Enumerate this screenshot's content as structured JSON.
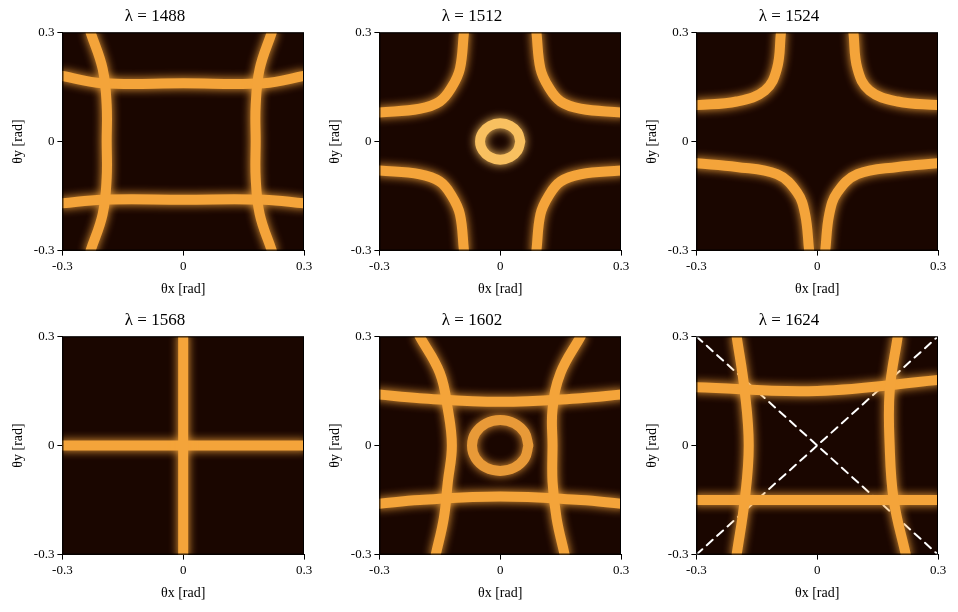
{
  "chart_data": [
    {
      "type": "line",
      "title": "λ = 1488",
      "x_label": "θx [rad]",
      "y_label": "θy [rad]",
      "xlim": [
        -0.3,
        0.3
      ],
      "ylim": [
        -0.3,
        0.3
      ],
      "xticks": [
        -0.3,
        0,
        0.3
      ],
      "yticks": [
        -0.3,
        0,
        0.3
      ],
      "grid": false,
      "series": [
        {
          "color": "#f4a43a",
          "line_style": "solid",
          "marker": "none",
          "x": [
            -0.23,
            -0.2,
            -0.19,
            -0.19,
            -0.19,
            -0.2,
            -0.23
          ],
          "y": [
            0.3,
            0.2,
            0.1,
            0,
            -0.1,
            -0.2,
            -0.3
          ]
        },
        {
          "color": "#f4a43a",
          "line_style": "solid",
          "marker": "none",
          "x": [
            0.22,
            0.19,
            0.18,
            0.18,
            0.18,
            0.19,
            0.22
          ],
          "y": [
            0.3,
            0.2,
            0.1,
            0,
            -0.1,
            -0.2,
            -0.3
          ]
        },
        {
          "color": "#f4a43a",
          "line_style": "solid",
          "marker": "none",
          "x": [
            -0.3,
            -0.2,
            0,
            0.2,
            0.3
          ],
          "y": [
            0.18,
            0.16,
            0.16,
            0.16,
            0.18
          ]
        },
        {
          "color": "#f4a43a",
          "line_style": "solid",
          "marker": "none",
          "x": [
            -0.3,
            -0.2,
            0,
            0.2,
            0.3
          ],
          "y": [
            -0.17,
            -0.16,
            -0.16,
            -0.16,
            -0.17
          ]
        }
      ]
    },
    {
      "type": "line",
      "title": "λ = 1512",
      "x_label": "θx [rad]",
      "y_label": "θy [rad]",
      "xlim": [
        -0.3,
        0.3
      ],
      "ylim": [
        -0.3,
        0.3
      ],
      "xticks": [
        -0.3,
        0,
        0.3
      ],
      "yticks": [
        -0.3,
        0,
        0.3
      ],
      "grid": false,
      "series": [
        {
          "color": "#f4a43a",
          "line_style": "solid",
          "marker": "none",
          "x": [
            -0.3,
            -0.2,
            -0.15,
            -0.12,
            -0.1,
            -0.09
          ],
          "y": [
            0.08,
            0.09,
            0.11,
            0.15,
            0.2,
            0.3
          ]
        },
        {
          "color": "#f4a43a",
          "line_style": "solid",
          "marker": "none",
          "x": [
            0.3,
            0.2,
            0.15,
            0.12,
            0.1,
            0.09
          ],
          "y": [
            0.08,
            0.09,
            0.11,
            0.15,
            0.2,
            0.3
          ]
        },
        {
          "color": "#f4a43a",
          "line_style": "solid",
          "marker": "none",
          "x": [
            -0.3,
            -0.2,
            -0.15,
            -0.12,
            -0.1,
            -0.09
          ],
          "y": [
            -0.08,
            -0.09,
            -0.11,
            -0.15,
            -0.2,
            -0.3
          ]
        },
        {
          "color": "#f4a43a",
          "line_style": "solid",
          "marker": "none",
          "x": [
            0.3,
            0.2,
            0.15,
            0.12,
            0.1,
            0.09
          ],
          "y": [
            -0.08,
            -0.09,
            -0.11,
            -0.15,
            -0.2,
            -0.3
          ]
        },
        {
          "color": "#f8c060",
          "line_style": "solid",
          "marker": "none",
          "x": [
            0.05,
            0.043,
            0.025,
            0,
            -0.025,
            -0.043,
            -0.05,
            -0.043,
            -0.025,
            0,
            0.025,
            0.043,
            0.05
          ],
          "y": [
            0,
            0.025,
            0.043,
            0.05,
            0.043,
            0.025,
            0,
            -0.025,
            -0.043,
            -0.05,
            -0.043,
            -0.025,
            0
          ]
        }
      ]
    },
    {
      "type": "line",
      "title": "λ = 1524",
      "x_label": "θx [rad]",
      "y_label": "θy [rad]",
      "xlim": [
        -0.3,
        0.3
      ],
      "ylim": [
        -0.3,
        0.3
      ],
      "xticks": [
        -0.3,
        0,
        0.3
      ],
      "yticks": [
        -0.3,
        0,
        0.3
      ],
      "grid": false,
      "series": [
        {
          "color": "#f4a43a",
          "line_style": "solid",
          "marker": "none",
          "x": [
            -0.3,
            -0.2,
            -0.13,
            -0.1,
            -0.09
          ],
          "y": [
            0.1,
            0.11,
            0.14,
            0.2,
            0.3
          ]
        },
        {
          "color": "#f4a43a",
          "line_style": "solid",
          "marker": "none",
          "x": [
            0.3,
            0.2,
            0.13,
            0.1,
            0.09
          ],
          "y": [
            0.1,
            0.11,
            0.14,
            0.2,
            0.3
          ]
        },
        {
          "color": "#f4a43a",
          "line_style": "solid",
          "marker": "none",
          "x": [
            -0.3,
            -0.2,
            -0.1,
            -0.05,
            -0.03,
            -0.02
          ],
          "y": [
            -0.06,
            -0.07,
            -0.09,
            -0.14,
            -0.2,
            -0.3
          ]
        },
        {
          "color": "#f4a43a",
          "line_style": "solid",
          "marker": "none",
          "x": [
            0.3,
            0.2,
            0.1,
            0.05,
            0.03,
            0.02
          ],
          "y": [
            -0.06,
            -0.07,
            -0.09,
            -0.14,
            -0.2,
            -0.3
          ]
        }
      ]
    },
    {
      "type": "line",
      "title": "λ = 1568",
      "x_label": "θx [rad]",
      "y_label": "θy [rad]",
      "xlim": [
        -0.3,
        0.3
      ],
      "ylim": [
        -0.3,
        0.3
      ],
      "xticks": [
        -0.3,
        0,
        0.3
      ],
      "yticks": [
        -0.3,
        0,
        0.3
      ],
      "grid": false,
      "series": [
        {
          "color": "#f4a43a",
          "line_style": "solid",
          "marker": "none",
          "x": [
            0,
            0
          ],
          "y": [
            -0.3,
            0.3
          ]
        },
        {
          "color": "#f4a43a",
          "line_style": "solid",
          "marker": "none",
          "x": [
            -0.3,
            0.3
          ],
          "y": [
            0,
            0
          ]
        }
      ]
    },
    {
      "type": "line",
      "title": "λ = 1602",
      "x_label": "θx [rad]",
      "y_label": "θy [rad]",
      "xlim": [
        -0.3,
        0.3
      ],
      "ylim": [
        -0.3,
        0.3
      ],
      "xticks": [
        -0.3,
        0,
        0.3
      ],
      "yticks": [
        -0.3,
        0,
        0.3
      ],
      "grid": false,
      "series": [
        {
          "color": "#f4a43a",
          "line_style": "solid",
          "marker": "none",
          "x": [
            -0.2,
            -0.15,
            -0.13,
            -0.12,
            -0.13,
            -0.14,
            -0.16
          ],
          "y": [
            0.3,
            0.2,
            0.1,
            0,
            -0.1,
            -0.2,
            -0.3
          ]
        },
        {
          "color": "#f4a43a",
          "line_style": "solid",
          "marker": "none",
          "x": [
            0.2,
            0.15,
            0.13,
            0.13,
            0.13,
            0.14,
            0.16
          ],
          "y": [
            0.3,
            0.2,
            0.1,
            0,
            -0.1,
            -0.2,
            -0.3
          ]
        },
        {
          "color": "#f4a43a",
          "line_style": "solid",
          "marker": "none",
          "x": [
            -0.3,
            -0.2,
            0,
            0.2,
            0.3
          ],
          "y": [
            0.14,
            0.13,
            0.12,
            0.13,
            0.14
          ]
        },
        {
          "color": "#f4a43a",
          "line_style": "solid",
          "marker": "none",
          "x": [
            -0.3,
            -0.2,
            0,
            0.2,
            0.3
          ],
          "y": [
            -0.16,
            -0.15,
            -0.14,
            -0.15,
            -0.16
          ]
        },
        {
          "color": "#e89a38",
          "line_style": "solid",
          "marker": "none",
          "x": [
            0.07,
            0.061,
            0.035,
            0,
            -0.035,
            -0.061,
            -0.07,
            -0.061,
            -0.035,
            0,
            0.035,
            0.061,
            0.07
          ],
          "y": [
            0,
            0.035,
            0.061,
            0.07,
            0.061,
            0.035,
            0,
            -0.035,
            -0.061,
            -0.07,
            -0.061,
            -0.035,
            0
          ]
        }
      ]
    },
    {
      "type": "line",
      "title": "λ = 1624",
      "x_label": "θx [rad]",
      "y_label": "θy [rad]",
      "xlim": [
        -0.3,
        0.3
      ],
      "ylim": [
        -0.3,
        0.3
      ],
      "xticks": [
        -0.3,
        0,
        0.3
      ],
      "yticks": [
        -0.3,
        0,
        0.3
      ],
      "grid": false,
      "series": [
        {
          "color": "#f4a43a",
          "line_style": "solid",
          "marker": "none",
          "x": [
            -0.2,
            -0.18,
            -0.17,
            -0.18,
            -0.2
          ],
          "y": [
            0.3,
            0.15,
            0,
            -0.15,
            -0.3
          ]
        },
        {
          "color": "#f4a43a",
          "line_style": "solid",
          "marker": "none",
          "x": [
            0.2,
            0.18,
            0.18,
            0.19,
            0.22
          ],
          "y": [
            0.3,
            0.15,
            0,
            -0.15,
            -0.3
          ]
        },
        {
          "color": "#f4a43a",
          "line_style": "solid",
          "marker": "none",
          "x": [
            -0.3,
            0,
            0.3
          ],
          "y": [
            0.16,
            0.15,
            0.18
          ]
        },
        {
          "color": "#f4a43a",
          "line_style": "solid",
          "marker": "none",
          "x": [
            -0.3,
            0,
            0.3
          ],
          "y": [
            -0.15,
            -0.15,
            -0.15
          ]
        },
        {
          "color": "#ffffff",
          "line_style": "dashed",
          "marker": "none",
          "x": [
            -0.3,
            0.3
          ],
          "y": [
            -0.3,
            0.3
          ]
        },
        {
          "color": "#ffffff",
          "line_style": "dashed",
          "marker": "none",
          "x": [
            -0.3,
            0.3
          ],
          "y": [
            0.3,
            -0.3
          ]
        }
      ]
    }
  ]
}
